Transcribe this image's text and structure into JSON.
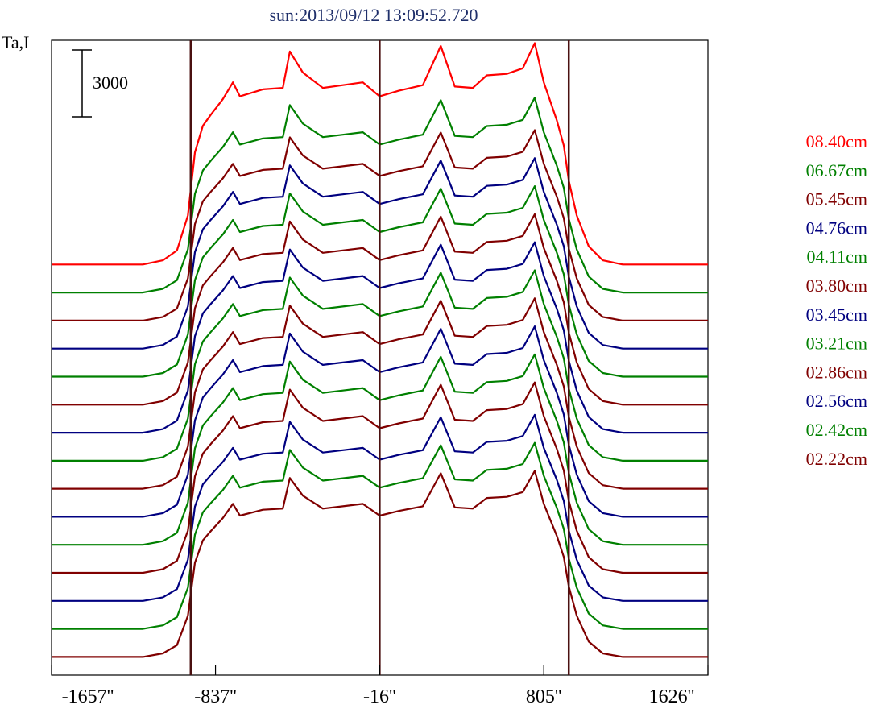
{
  "chart_data": {
    "type": "line",
    "title": "sun:2013/09/12 13:09:52.720",
    "ylabel": "Ta,I",
    "scale_bar_label": "3000",
    "xlim": [
      -1657,
      1626
    ],
    "x_ticks": [
      {
        "value": -1657,
        "label": "-1657''"
      },
      {
        "value": -837,
        "label": "-837''"
      },
      {
        "value": -16,
        "label": "-16''"
      },
      {
        "value": 805,
        "label": "805''"
      },
      {
        "value": 1626,
        "label": "1626''"
      }
    ],
    "vertical_lines_x": [
      -961,
      -16,
      930
    ],
    "line_color": "#4a1010",
    "profile_pattern": [
      {
        "x": -1657,
        "y": 0
      },
      {
        "x": -1400,
        "y": 0
      },
      {
        "x": -1200,
        "y": 0
      },
      {
        "x": -1100,
        "y": 300
      },
      {
        "x": -1030,
        "y": 1000
      },
      {
        "x": -975,
        "y": 3500
      },
      {
        "x": -940,
        "y": 8000
      },
      {
        "x": -900,
        "y": 9900
      },
      {
        "x": -860,
        "y": 10700
      },
      {
        "x": -800,
        "y": 11800
      },
      {
        "x": -750,
        "y": 13000
      },
      {
        "x": -715,
        "y": 12000
      },
      {
        "x": -600,
        "y": 12500
      },
      {
        "x": -500,
        "y": 12600
      },
      {
        "x": -465,
        "y": 15200
      },
      {
        "x": -400,
        "y": 13700
      },
      {
        "x": -300,
        "y": 12600
      },
      {
        "x": -200,
        "y": 12800
      },
      {
        "x": -100,
        "y": 13000
      },
      {
        "x": -16,
        "y": 12000
      },
      {
        "x": 80,
        "y": 12400
      },
      {
        "x": 200,
        "y": 12800
      },
      {
        "x": 290,
        "y": 15600
      },
      {
        "x": 360,
        "y": 12700
      },
      {
        "x": 450,
        "y": 12600
      },
      {
        "x": 520,
        "y": 13500
      },
      {
        "x": 620,
        "y": 13600
      },
      {
        "x": 700,
        "y": 14000
      },
      {
        "x": 760,
        "y": 15800
      },
      {
        "x": 805,
        "y": 13000
      },
      {
        "x": 870,
        "y": 10300
      },
      {
        "x": 905,
        "y": 8500
      },
      {
        "x": 930,
        "y": 6000
      },
      {
        "x": 970,
        "y": 3500
      },
      {
        "x": 1030,
        "y": 1300
      },
      {
        "x": 1100,
        "y": 300
      },
      {
        "x": 1200,
        "y": 0
      },
      {
        "x": 1400,
        "y": 0
      },
      {
        "x": 1626,
        "y": 0
      }
    ],
    "series": [
      {
        "name": "08.40cm",
        "color": "#ff0000",
        "offset": 22000,
        "amplitude": 1.0
      },
      {
        "name": "06.67cm",
        "color": "#008000",
        "offset": 20000,
        "amplitude": 0.88
      },
      {
        "name": "05.45cm",
        "color": "#800000",
        "offset": 18000,
        "amplitude": 0.86
      },
      {
        "name": "04.76cm",
        "color": "#000080",
        "offset": 16000,
        "amplitude": 0.86
      },
      {
        "name": "04.11cm",
        "color": "#008000",
        "offset": 14000,
        "amplitude": 0.86
      },
      {
        "name": "03.80cm",
        "color": "#800000",
        "offset": 12000,
        "amplitude": 0.86
      },
      {
        "name": "03.45cm",
        "color": "#000080",
        "offset": 10000,
        "amplitude": 0.86
      },
      {
        "name": "03.21cm",
        "color": "#008000",
        "offset": 8000,
        "amplitude": 0.86
      },
      {
        "name": "02.86cm",
        "color": "#800000",
        "offset": 6000,
        "amplitude": 0.86
      },
      {
        "name": "02.56cm",
        "color": "#000080",
        "offset": 4000,
        "amplitude": 0.86
      },
      {
        "name": "02.42cm",
        "color": "#008000",
        "offset": 2000,
        "amplitude": 0.86
      },
      {
        "name": "02.22cm",
        "color": "#800000",
        "offset": 0,
        "amplitude": 0.86
      },
      {
        "name": "",
        "color": "#000080",
        "offset": -2000,
        "amplitude": 0.84
      },
      {
        "name": "",
        "color": "#008000",
        "offset": -4000,
        "amplitude": 0.84
      },
      {
        "name": "",
        "color": "#800000",
        "offset": -6000,
        "amplitude": 0.84
      }
    ],
    "ylim": [
      -7300,
      38000
    ]
  }
}
